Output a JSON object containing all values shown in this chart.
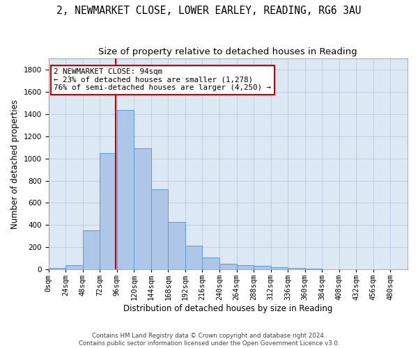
{
  "title": "2, NEWMARKET CLOSE, LOWER EARLEY, READING, RG6 3AU",
  "subtitle": "Size of property relative to detached houses in Reading",
  "xlabel": "Distribution of detached houses by size in Reading",
  "ylabel": "Number of detached properties",
  "bin_labels": [
    "0sqm",
    "24sqm",
    "48sqm",
    "72sqm",
    "96sqm",
    "120sqm",
    "144sqm",
    "168sqm",
    "192sqm",
    "216sqm",
    "240sqm",
    "264sqm",
    "288sqm",
    "312sqm",
    "336sqm",
    "360sqm",
    "384sqm",
    "408sqm",
    "432sqm",
    "456sqm",
    "480sqm"
  ],
  "bar_values": [
    10,
    35,
    350,
    1050,
    1440,
    1090,
    725,
    430,
    215,
    105,
    50,
    40,
    30,
    20,
    10,
    5,
    2,
    1,
    0,
    0,
    0
  ],
  "bar_color": "#aec6e8",
  "bar_edge_color": "#5b9bd5",
  "bar_width": 1.0,
  "property_line_x": 94,
  "bin_size": 24,
  "ylim": [
    0,
    1900
  ],
  "yticks": [
    0,
    200,
    400,
    600,
    800,
    1000,
    1200,
    1400,
    1600,
    1800
  ],
  "annotation_text": "2 NEWMARKET CLOSE: 94sqm\n← 23% of detached houses are smaller (1,278)\n76% of semi-detached houses are larger (4,250) →",
  "annotation_box_color": "#ffffff",
  "annotation_box_edge_color": "#cc0000",
  "red_line_color": "#cc0000",
  "footer_line1": "Contains HM Land Registry data © Crown copyright and database right 2024.",
  "footer_line2": "Contains public sector information licensed under the Open Government Licence v3.0.",
  "background_color": "#ffffff",
  "axes_bg_color": "#dce9f5",
  "grid_color": "#b0c4d8",
  "title_fontsize": 10.5,
  "subtitle_fontsize": 9.5,
  "axis_label_fontsize": 8.5,
  "tick_fontsize": 7.5
}
